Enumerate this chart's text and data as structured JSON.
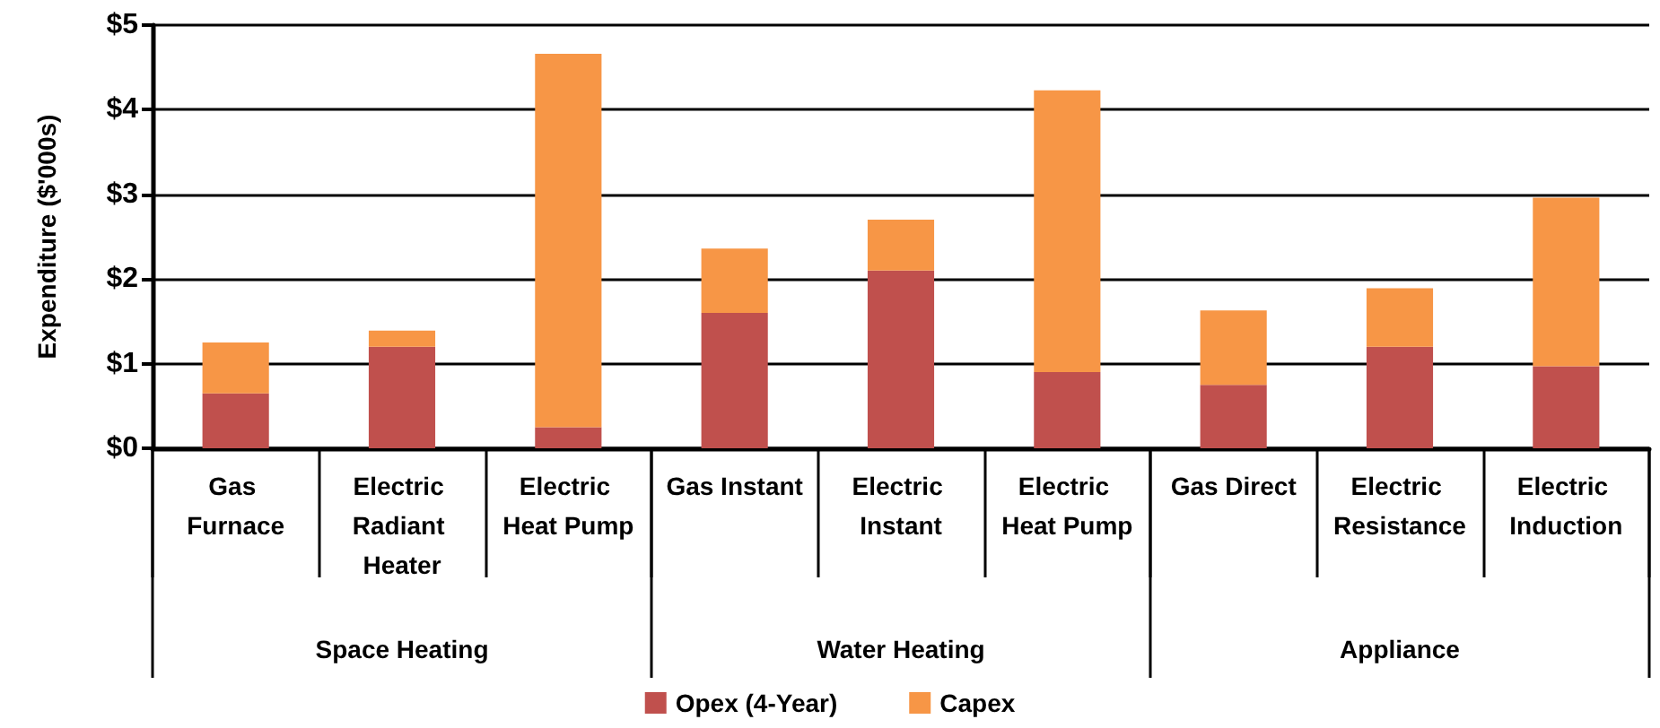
{
  "chart_data": {
    "type": "bar",
    "stacked": true,
    "ylabel": "Expenditure ($'000s)",
    "categories": [
      "Gas Furnace",
      "Electric Radiant Heater",
      "Electric Heat Pump",
      "Gas Instant",
      "Electric Instant",
      "Electric Heat Pump",
      "Gas Direct",
      "Electric Resistance",
      "Electric Induction"
    ],
    "series": [
      {
        "name": "Opex (4-Year)",
        "color": "#c0504d",
        "values": [
          0.65,
          1.2,
          0.25,
          1.6,
          2.1,
          0.9,
          0.75,
          1.2,
          0.97
        ]
      },
      {
        "name": "Capex",
        "color": "#f79646",
        "values": [
          0.6,
          0.19,
          4.41,
          0.76,
          0.6,
          3.33,
          0.88,
          0.69,
          1.99
        ]
      }
    ],
    "ylim": [
      0,
      5
    ],
    "yticks": [
      {
        "value": 0,
        "label": "$0"
      },
      {
        "value": 1,
        "label": "$1"
      },
      {
        "value": 2,
        "label": "$2"
      },
      {
        "value": 3,
        "label": "$3"
      },
      {
        "value": 4,
        "label": "$4"
      },
      {
        "value": 5,
        "label": "$5"
      }
    ],
    "grid": "y",
    "legend": "bottom",
    "annotations": [
      "Space Heating",
      "Water Heating",
      "Appliance"
    ]
  }
}
